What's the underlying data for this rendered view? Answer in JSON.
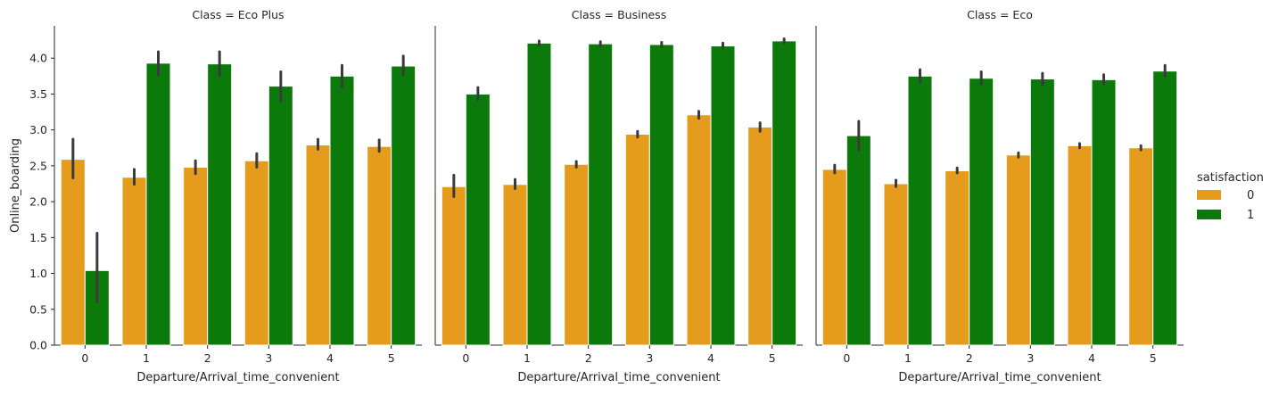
{
  "colors": {
    "0": "#e59c1c",
    "1": "#0b7a0b",
    "axis": "#262626",
    "errorbar": "#3b3b3b"
  },
  "legend": {
    "title": "satisfaction",
    "items": [
      "0",
      "1"
    ],
    "placement": "right"
  },
  "chart_data": [
    {
      "type": "bar",
      "title": "Class = Eco Plus",
      "xlabel": "Departure/Arrival_time_convenient",
      "ylabel": "Online_boarding",
      "categories": [
        "0",
        "1",
        "2",
        "3",
        "4",
        "5"
      ],
      "ylim": [
        0,
        4.45
      ],
      "yticks": [
        "0.0",
        "0.5",
        "1.0",
        "1.5",
        "2.0",
        "2.5",
        "3.0",
        "3.5",
        "4.0"
      ],
      "grid": false,
      "series": [
        {
          "name": "0",
          "values": [
            2.59,
            2.34,
            2.48,
            2.57,
            2.79,
            2.77
          ],
          "ci_low": [
            2.33,
            2.24,
            2.39,
            2.48,
            2.73,
            2.7
          ],
          "ci_high": [
            2.87,
            2.45,
            2.57,
            2.67,
            2.87,
            2.86
          ]
        },
        {
          "name": "1",
          "values": [
            1.04,
            3.93,
            3.92,
            3.61,
            3.75,
            3.89
          ],
          "ci_low": [
            0.6,
            3.77,
            3.76,
            3.4,
            3.6,
            3.77
          ],
          "ci_high": [
            1.56,
            4.09,
            4.09,
            3.81,
            3.9,
            4.03
          ]
        }
      ]
    },
    {
      "type": "bar",
      "title": "Class = Business",
      "xlabel": "Departure/Arrival_time_convenient",
      "ylabel": "",
      "categories": [
        "0",
        "1",
        "2",
        "3",
        "4",
        "5"
      ],
      "ylim": [
        0,
        4.45
      ],
      "grid": false,
      "series": [
        {
          "name": "0",
          "values": [
            2.21,
            2.24,
            2.52,
            2.94,
            3.21,
            3.04
          ],
          "ci_low": [
            2.07,
            2.18,
            2.48,
            2.9,
            3.16,
            2.98
          ],
          "ci_high": [
            2.37,
            2.31,
            2.56,
            2.98,
            3.26,
            3.1
          ]
        },
        {
          "name": "1",
          "values": [
            3.5,
            4.21,
            4.2,
            4.19,
            4.17,
            4.24
          ],
          "ci_low": [
            3.42,
            4.18,
            4.17,
            4.16,
            4.14,
            4.21
          ],
          "ci_high": [
            3.59,
            4.24,
            4.23,
            4.22,
            4.21,
            4.27
          ]
        }
      ]
    },
    {
      "type": "bar",
      "title": "Class = Eco",
      "xlabel": "Departure/Arrival_time_convenient",
      "ylabel": "",
      "categories": [
        "0",
        "1",
        "2",
        "3",
        "4",
        "5"
      ],
      "ylim": [
        0,
        4.45
      ],
      "grid": false,
      "series": [
        {
          "name": "0",
          "values": [
            2.45,
            2.25,
            2.43,
            2.65,
            2.78,
            2.75
          ],
          "ci_low": [
            2.4,
            2.21,
            2.4,
            2.62,
            2.75,
            2.72
          ],
          "ci_high": [
            2.51,
            2.3,
            2.47,
            2.68,
            2.81,
            2.78
          ]
        },
        {
          "name": "1",
          "values": [
            2.92,
            3.75,
            3.72,
            3.71,
            3.7,
            3.82
          ],
          "ci_low": [
            2.72,
            3.67,
            3.64,
            3.63,
            3.64,
            3.75
          ],
          "ci_high": [
            3.12,
            3.84,
            3.81,
            3.79,
            3.77,
            3.9
          ]
        }
      ]
    }
  ]
}
